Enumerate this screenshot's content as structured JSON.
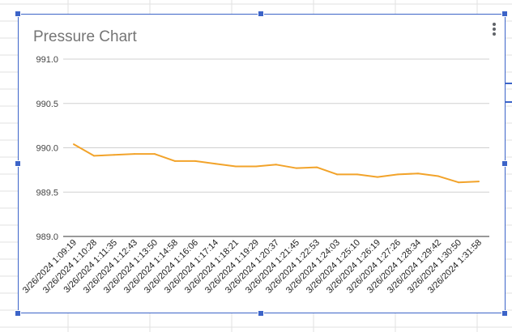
{
  "chart_data": {
    "type": "line",
    "title": "Pressure Chart",
    "xlabel": "",
    "ylabel": "",
    "ylim": [
      989.0,
      991.0
    ],
    "yticks": [
      "991.0",
      "990.5",
      "990.0",
      "989.5",
      "989.0"
    ],
    "ytick_values": [
      991.0,
      990.5,
      990.0,
      989.5,
      989.0
    ],
    "grid": true,
    "legend": "none",
    "categories": [
      "3/26/2024 1:09:19",
      "3/26/2024 1:10:28",
      "3/26/2024 1:11:35",
      "3/26/2024 1:12:43",
      "3/26/2024 1:13:50",
      "3/26/2024 1:14:58",
      "3/26/2024 1:16:06",
      "3/26/2024 1:17:14",
      "3/26/2024 1:18:21",
      "3/26/2024 1:19:29",
      "3/26/2024 1:20:37",
      "3/26/2024 1:21:45",
      "3/26/2024 1:22:53",
      "3/26/2024 1:24:03",
      "3/26/2024 1:25:10",
      "3/26/2024 1:26:19",
      "3/26/2024 1:27:26",
      "3/26/2024 1:28:34",
      "3/26/2024 1:29:42",
      "3/26/2024 1:30:50",
      "3/26/2024 1:31:58"
    ],
    "series": [
      {
        "color": "#f2a32a",
        "values": [
          990.04,
          989.91,
          989.92,
          989.93,
          989.93,
          989.85,
          989.85,
          989.82,
          989.79,
          989.79,
          989.81,
          989.77,
          989.78,
          989.7,
          989.7,
          989.67,
          989.7,
          989.71,
          989.68,
          989.61,
          989.62
        ]
      }
    ]
  },
  "colors": {
    "selection_border": "#3c64c8",
    "gridline": "#d0d0d0",
    "sheet_grid": "#e2e2e2"
  },
  "icons": {
    "menu": "more-vert-icon"
  }
}
